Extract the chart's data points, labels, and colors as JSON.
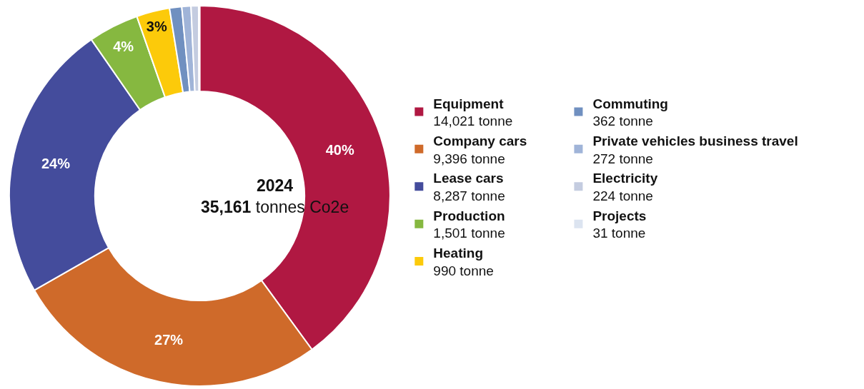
{
  "chart_data": {
    "type": "donut",
    "title": "2024",
    "subtitle": "35,161 tonnes Co2e",
    "categories": [
      "Equipment",
      "Company cars",
      "Lease cars",
      "Production",
      "Heating",
      "Commuting",
      "Private vehicles business travel",
      "Electricity",
      "Projects"
    ],
    "values": [
      14021,
      9396,
      8287,
      1501,
      990,
      362,
      272,
      224,
      31
    ],
    "colors": [
      "#b01842",
      "#cf6a2a",
      "#444c9c",
      "#86b840",
      "#fcca0a",
      "#7090c0",
      "#a0b4d8",
      "#c4cce0",
      "#dce4f0"
    ],
    "value_labels": [
      "14,021 tonne",
      "9,396 tonne",
      "8,287 tonne",
      "1,501 tonne",
      "990 tonne",
      "362 tonne",
      "272 tonne",
      "224 tonne",
      "31 tonne"
    ],
    "annotations": [
      {
        "text": "40%",
        "x": "Equipment"
      },
      {
        "text": "27%",
        "x": "Company cars"
      },
      {
        "text": "24%",
        "x": "Lease cars"
      },
      {
        "text": "4%",
        "x": "Production"
      },
      {
        "text": "3%",
        "x": "Heating"
      }
    ],
    "legend": "right"
  }
}
